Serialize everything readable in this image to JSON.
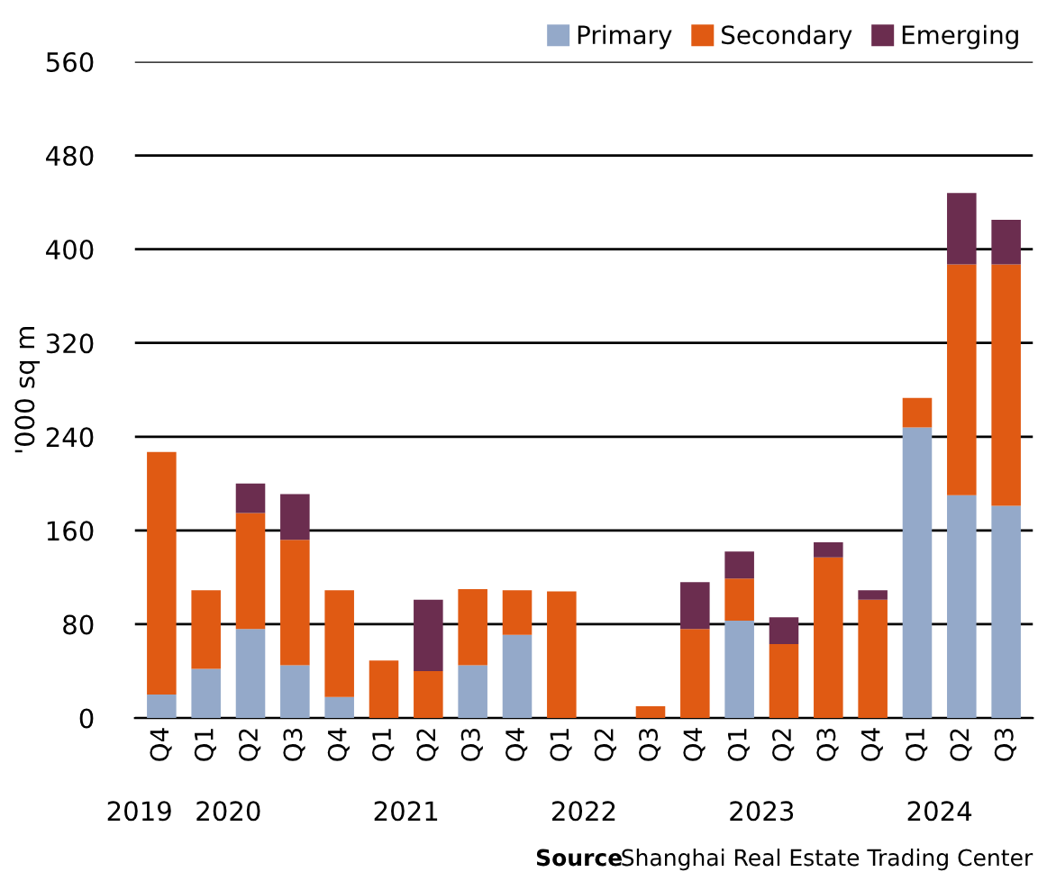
{
  "chart_data": {
    "type": "bar",
    "stacked": true,
    "ylabel": "'000 sq m",
    "categories": [
      "Q4",
      "Q1",
      "Q2",
      "Q3",
      "Q4",
      "Q1",
      "Q2",
      "Q3",
      "Q4",
      "Q1",
      "Q2",
      "Q3",
      "Q4",
      "Q1",
      "Q2",
      "Q3",
      "Q4",
      "Q1",
      "Q2",
      "Q3"
    ],
    "series": [
      {
        "name": "Primary",
        "color": "#94a9c9",
        "values": [
          20,
          42,
          76,
          45,
          18,
          0,
          0,
          45,
          71,
          0,
          0,
          0,
          0,
          83,
          0,
          0,
          0,
          248,
          190,
          181
        ]
      },
      {
        "name": "Secondary",
        "color": "#e05a13",
        "values": [
          207,
          67,
          99,
          107,
          91,
          49,
          40,
          65,
          38,
          108,
          0,
          10,
          76,
          36,
          63,
          137,
          101,
          25,
          197,
          206
        ]
      },
      {
        "name": "Emerging",
        "color": "#6b2d4f",
        "values": [
          0,
          0,
          25,
          39,
          0,
          0,
          61,
          0,
          0,
          0,
          0,
          0,
          40,
          23,
          23,
          13,
          8,
          0,
          61,
          38
        ]
      }
    ],
    "ylim": [
      0,
      560
    ],
    "yticks": [
      0,
      80,
      160,
      240,
      320,
      400,
      480,
      560
    ],
    "grid": "y",
    "legend": "top right",
    "annotations": [
      "2019",
      "2020",
      "2021",
      "2022",
      "2023",
      "2024",
      "Source",
      "Shanghai Real Estate Trading Center"
    ]
  }
}
